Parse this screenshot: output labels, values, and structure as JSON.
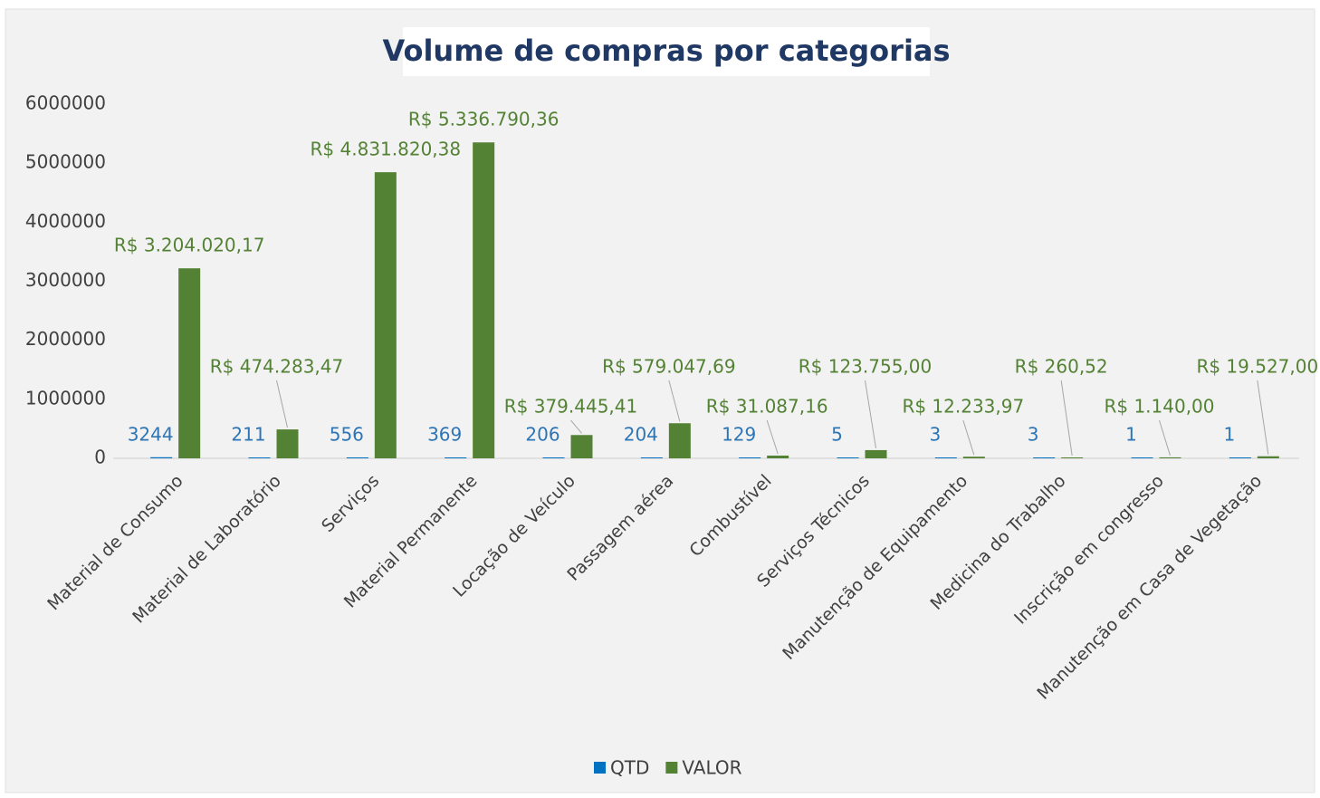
{
  "chart_data": {
    "type": "bar",
    "title": "Volume de compras por categorias",
    "categories": [
      "Material de Consumo",
      "Material de Laboratório",
      "Serviços",
      "Material Permanente",
      "Locação de Veículo",
      "Passagem aérea",
      "Combustível",
      "Serviços Técnicos",
      "Manutenção de Equipamento",
      "Medicina do Trabalho",
      "Inscrição em congresso",
      "Manutenção em Casa de Vegetação"
    ],
    "series": [
      {
        "name": "QTD",
        "color": "#0070c0",
        "label_color": "#2e75b6",
        "values": [
          3244,
          211,
          556,
          369,
          206,
          204,
          129,
          5,
          3,
          3,
          1,
          1
        ]
      },
      {
        "name": "VALOR",
        "color": "#548235",
        "label_color": "#548235",
        "values": [
          3204020.17,
          474283.47,
          4831820.38,
          5336790.36,
          379445.41,
          579047.69,
          31087.16,
          123755.0,
          12233.97,
          260.52,
          1140.0,
          19527.0
        ],
        "value_labels": [
          "R$ 3.204.020,17",
          "R$ 474.283,47",
          "R$ 4.831.820,38",
          "R$ 5.336.790,36",
          "R$ 379.445,41",
          "R$ 579.047,69",
          "R$ 31.087,16",
          "R$ 123.755,00",
          "R$ 12.233,97",
          "R$ 260,52",
          "R$ 1.140,00",
          "R$ 19.527,00"
        ]
      }
    ],
    "ylim": [
      0,
      6000000
    ],
    "yticks": [
      0,
      1000000,
      2000000,
      3000000,
      4000000,
      5000000,
      6000000
    ],
    "grid": false,
    "legend": "bottom"
  }
}
